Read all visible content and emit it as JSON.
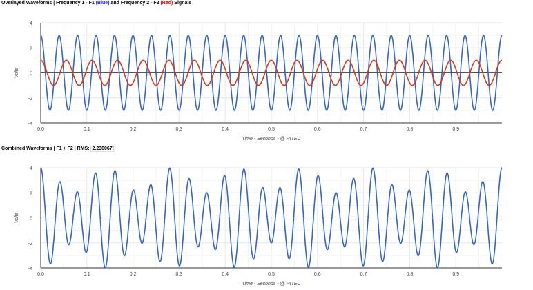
{
  "colors": {
    "f1": "#3366cc",
    "f2": "#dc3912",
    "axis": "#333333",
    "grid": "#e6e6e6"
  },
  "chart_data": [
    {
      "type": "line",
      "title_parts": [
        "Overlayed Waveforms | Frequency 1 - F1 ",
        "(Blue)",
        " and Frequency 2 - F2 ",
        "(Red)",
        " Signals"
      ],
      "xlabel": "Time - Seconds - @ RITEC",
      "ylabel": "Volts",
      "xlim": [
        0,
        1
      ],
      "ylim": [
        -4,
        4
      ],
      "xticks": [
        "0.0",
        "0.1",
        "0.2",
        "0.3",
        "0.4",
        "0.5",
        "0.6",
        "0.7",
        "0.8",
        "0.9"
      ],
      "yticks": [
        "4",
        "2",
        "0",
        "-2",
        "-4"
      ],
      "grid": true,
      "series": [
        {
          "color": "#3366cc",
          "function": "3*cos(2*pi*25*t)",
          "amplitude": 3,
          "frequency_hz": 25
        },
        {
          "color": "#dc3912",
          "function": "1*cos(2*pi*18*t)",
          "amplitude": 1,
          "frequency_hz": 18
        }
      ]
    },
    {
      "type": "line",
      "title": "Combined Waveforms | F1 + F2 | RMS: ",
      "rms": "2.236067!",
      "xlabel": "Time - Seconds - @ RITEC",
      "ylabel": "Volts",
      "xlim": [
        0,
        1
      ],
      "ylim": [
        -4,
        4
      ],
      "xticks": [
        "0.0",
        "0.1",
        "0.2",
        "0.3",
        "0.4",
        "0.5",
        "0.6",
        "0.7",
        "0.8",
        "0.9"
      ],
      "yticks": [
        "4",
        "2",
        "0",
        "-2",
        "-4"
      ],
      "grid": true,
      "series": [
        {
          "color": "#3366cc",
          "function": "3*cos(2*pi*25*t)+cos(2*pi*18*t)"
        }
      ]
    }
  ]
}
